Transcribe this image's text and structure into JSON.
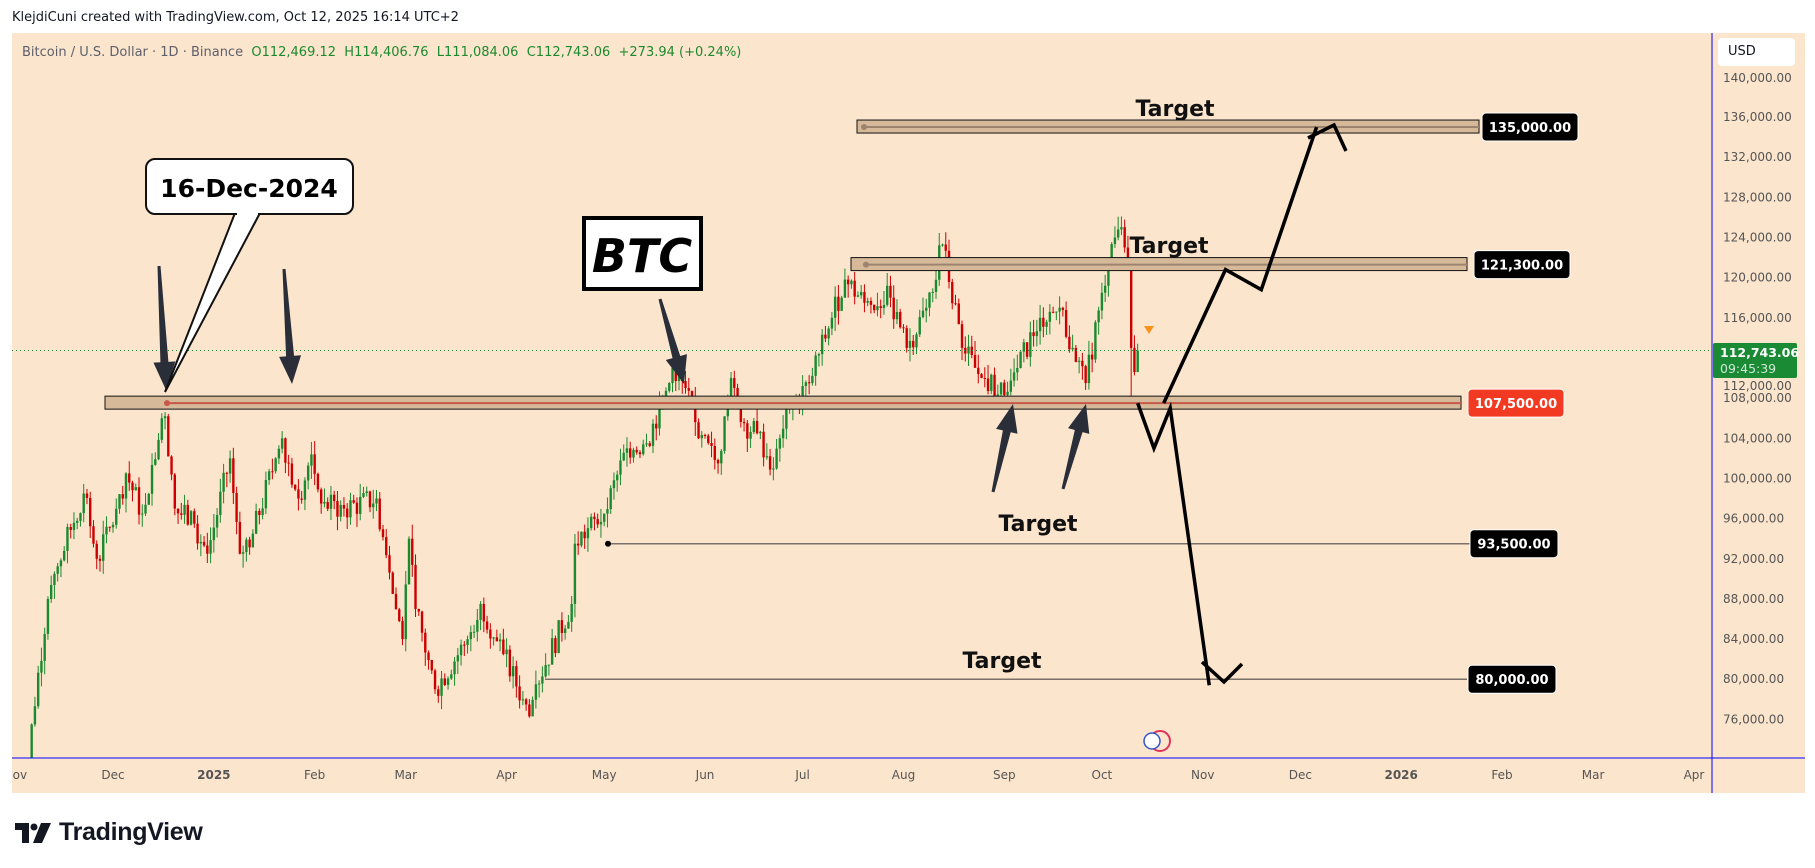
{
  "header": {
    "attribution": "KlejdiCuni created with TradingView.com, Oct 12, 2025 16:14 UTC+2",
    "symbol": "Bitcoin / U.S. Dollar · 1D · Binance",
    "open": "O112,469.12",
    "high": "H114,406.76",
    "low": "L111,084.06",
    "close": "C112,743.06",
    "change": "+273.94 (+0.24%)"
  },
  "price_axis": {
    "currency": "USD",
    "current_price": "112,743.06",
    "countdown": "09:45:39"
  },
  "annotations": {
    "callout": "16-Dec-2024",
    "ticker_box": "BTC",
    "targets": [
      "Target",
      "Target",
      "Target",
      "Target"
    ],
    "levels": [
      {
        "label": "135,000.00",
        "value": 135000,
        "color": "#000000"
      },
      {
        "label": "121,300.00",
        "value": 121300,
        "color": "#000000"
      },
      {
        "label": "107,500.00",
        "value": 107500,
        "color": "#f23a22"
      },
      {
        "label": "93,500.00",
        "value": 93500,
        "color": "#000000"
      },
      {
        "label": "80,000.00",
        "value": 80000,
        "color": "#000000"
      }
    ]
  },
  "logo": {
    "text": "TradingView"
  },
  "colors": {
    "up": "#1b8a2e",
    "down": "#cc0000",
    "background": "#fce5cd",
    "zone": "#d6b999",
    "current_price": "#1a8a35"
  },
  "chart_data": {
    "type": "candlestick",
    "symbol": "BTCUSD",
    "interval": "1D",
    "ylim": [
      72000,
      141000
    ],
    "xlim": [
      "2024-11-01",
      "2026-04-03"
    ],
    "y_ticks": [
      "140,000.00",
      "136,000.00",
      "132,000.00",
      "128,000.00",
      "124,000.00",
      "120,000.00",
      "116,000.00",
      "112,000.00",
      "108,000.00",
      "104,000.00",
      "100,000.00",
      "96,000.00",
      "92,000.00",
      "88,000.00",
      "84,000.00",
      "80,000.00",
      "76,000.00"
    ],
    "x_ticks": [
      {
        "date": "2024-11-01",
        "label": "Nov"
      },
      {
        "date": "2024-12-01",
        "label": "Dec"
      },
      {
        "date": "2025-01-01",
        "label": "2025",
        "bold": true
      },
      {
        "date": "2025-02-01",
        "label": "Feb"
      },
      {
        "date": "2025-03-01",
        "label": "Mar"
      },
      {
        "date": "2025-04-01",
        "label": "Apr"
      },
      {
        "date": "2025-05-01",
        "label": "May"
      },
      {
        "date": "2025-06-01",
        "label": "Jun"
      },
      {
        "date": "2025-07-01",
        "label": "Jul"
      },
      {
        "date": "2025-08-01",
        "label": "Aug"
      },
      {
        "date": "2025-09-01",
        "label": "Sep"
      },
      {
        "date": "2025-10-01",
        "label": "Oct"
      },
      {
        "date": "2025-11-01",
        "label": "Nov"
      },
      {
        "date": "2025-12-01",
        "label": "Dec"
      },
      {
        "date": "2026-01-01",
        "label": "2026",
        "bold": true
      },
      {
        "date": "2026-02-01",
        "label": "Feb"
      },
      {
        "date": "2026-03-01",
        "label": "Mar"
      },
      {
        "date": "2026-04-01",
        "label": "Apr"
      }
    ],
    "approx_closes": [
      [
        "2024-11-01",
        69500
      ],
      [
        "2024-11-05",
        68500
      ],
      [
        "2024-11-06",
        75500
      ],
      [
        "2024-11-11",
        88000
      ],
      [
        "2024-11-13",
        90500
      ],
      [
        "2024-11-22",
        98500
      ],
      [
        "2024-11-26",
        92000
      ],
      [
        "2024-12-04",
        98000
      ],
      [
        "2024-12-05",
        100500
      ],
      [
        "2024-12-10",
        96500
      ],
      [
        "2024-12-16",
        106000
      ],
      [
        "2024-12-17",
        106200
      ],
      [
        "2024-12-20",
        97000
      ],
      [
        "2024-12-26",
        95500
      ],
      [
        "2024-12-30",
        92500
      ],
      [
        "2025-01-06",
        102000
      ],
      [
        "2025-01-09",
        92500
      ],
      [
        "2025-01-13",
        94500
      ],
      [
        "2025-01-20",
        102000
      ],
      [
        "2025-01-22",
        104000
      ],
      [
        "2025-01-27",
        98000
      ],
      [
        "2025-01-31",
        102400
      ],
      [
        "2025-02-03",
        97500
      ],
      [
        "2025-02-10",
        97000
      ],
      [
        "2025-02-20",
        98000
      ],
      [
        "2025-02-25",
        88500
      ],
      [
        "2025-02-28",
        84000
      ],
      [
        "2025-03-02",
        94000
      ],
      [
        "2025-03-04",
        87000
      ],
      [
        "2025-03-10",
        79000
      ],
      [
        "2025-03-20",
        84000
      ],
      [
        "2025-03-24",
        87500
      ],
      [
        "2025-03-31",
        82500
      ],
      [
        "2025-04-06",
        78000
      ],
      [
        "2025-04-08",
        76300
      ],
      [
        "2025-04-10",
        79500
      ],
      [
        "2025-04-21",
        87500
      ],
      [
        "2025-04-22",
        93500
      ],
      [
        "2025-05-01",
        96500
      ],
      [
        "2025-05-08",
        103000
      ],
      [
        "2025-05-14",
        103500
      ],
      [
        "2025-05-21",
        109500
      ],
      [
        "2025-05-22",
        111000
      ],
      [
        "2025-05-26",
        109000
      ],
      [
        "2025-05-30",
        104000
      ],
      [
        "2025-06-05",
        101500
      ],
      [
        "2025-06-09",
        110000
      ],
      [
        "2025-06-13",
        105500
      ],
      [
        "2025-06-17",
        104500
      ],
      [
        "2025-06-22",
        101000
      ],
      [
        "2025-06-27",
        107000
      ],
      [
        "2025-07-03",
        109500
      ],
      [
        "2025-07-10",
        116000
      ],
      [
        "2025-07-14",
        119800
      ],
      [
        "2025-07-20",
        117500
      ],
      [
        "2025-07-28",
        118000
      ],
      [
        "2025-08-02",
        113000
      ],
      [
        "2025-08-08",
        117000
      ],
      [
        "2025-08-13",
        123300
      ],
      [
        "2025-08-19",
        113000
      ],
      [
        "2025-08-25",
        110000
      ],
      [
        "2025-09-01",
        108300
      ],
      [
        "2025-09-05",
        111000
      ],
      [
        "2025-09-12",
        116000
      ],
      [
        "2025-09-18",
        117000
      ],
      [
        "2025-09-22",
        113000
      ],
      [
        "2025-09-26",
        109500
      ],
      [
        "2025-10-01",
        118500
      ],
      [
        "2025-10-05",
        124000
      ],
      [
        "2025-10-06",
        124800
      ],
      [
        "2025-10-08",
        123000
      ],
      [
        "2025-10-09",
        121500
      ],
      [
        "2025-10-10",
        113000
      ],
      [
        "2025-10-11",
        110600
      ],
      [
        "2025-10-12",
        112743.06
      ]
    ],
    "wick_lows": [
      [
        "2025-10-10",
        107500
      ]
    ],
    "current_price": 112743.06,
    "projections": {
      "bullish": [
        [
          "2025-10-20",
          107500
        ],
        [
          "2025-11-08",
          120800
        ],
        [
          "2025-11-19",
          118800
        ],
        [
          "2025-12-06",
          135000
        ]
      ],
      "bearish": [
        [
          "2025-10-12",
          107500
        ],
        [
          "2025-10-17",
          103000
        ],
        [
          "2025-10-22",
          107000
        ],
        [
          "2025-11-03",
          79400
        ]
      ]
    }
  }
}
